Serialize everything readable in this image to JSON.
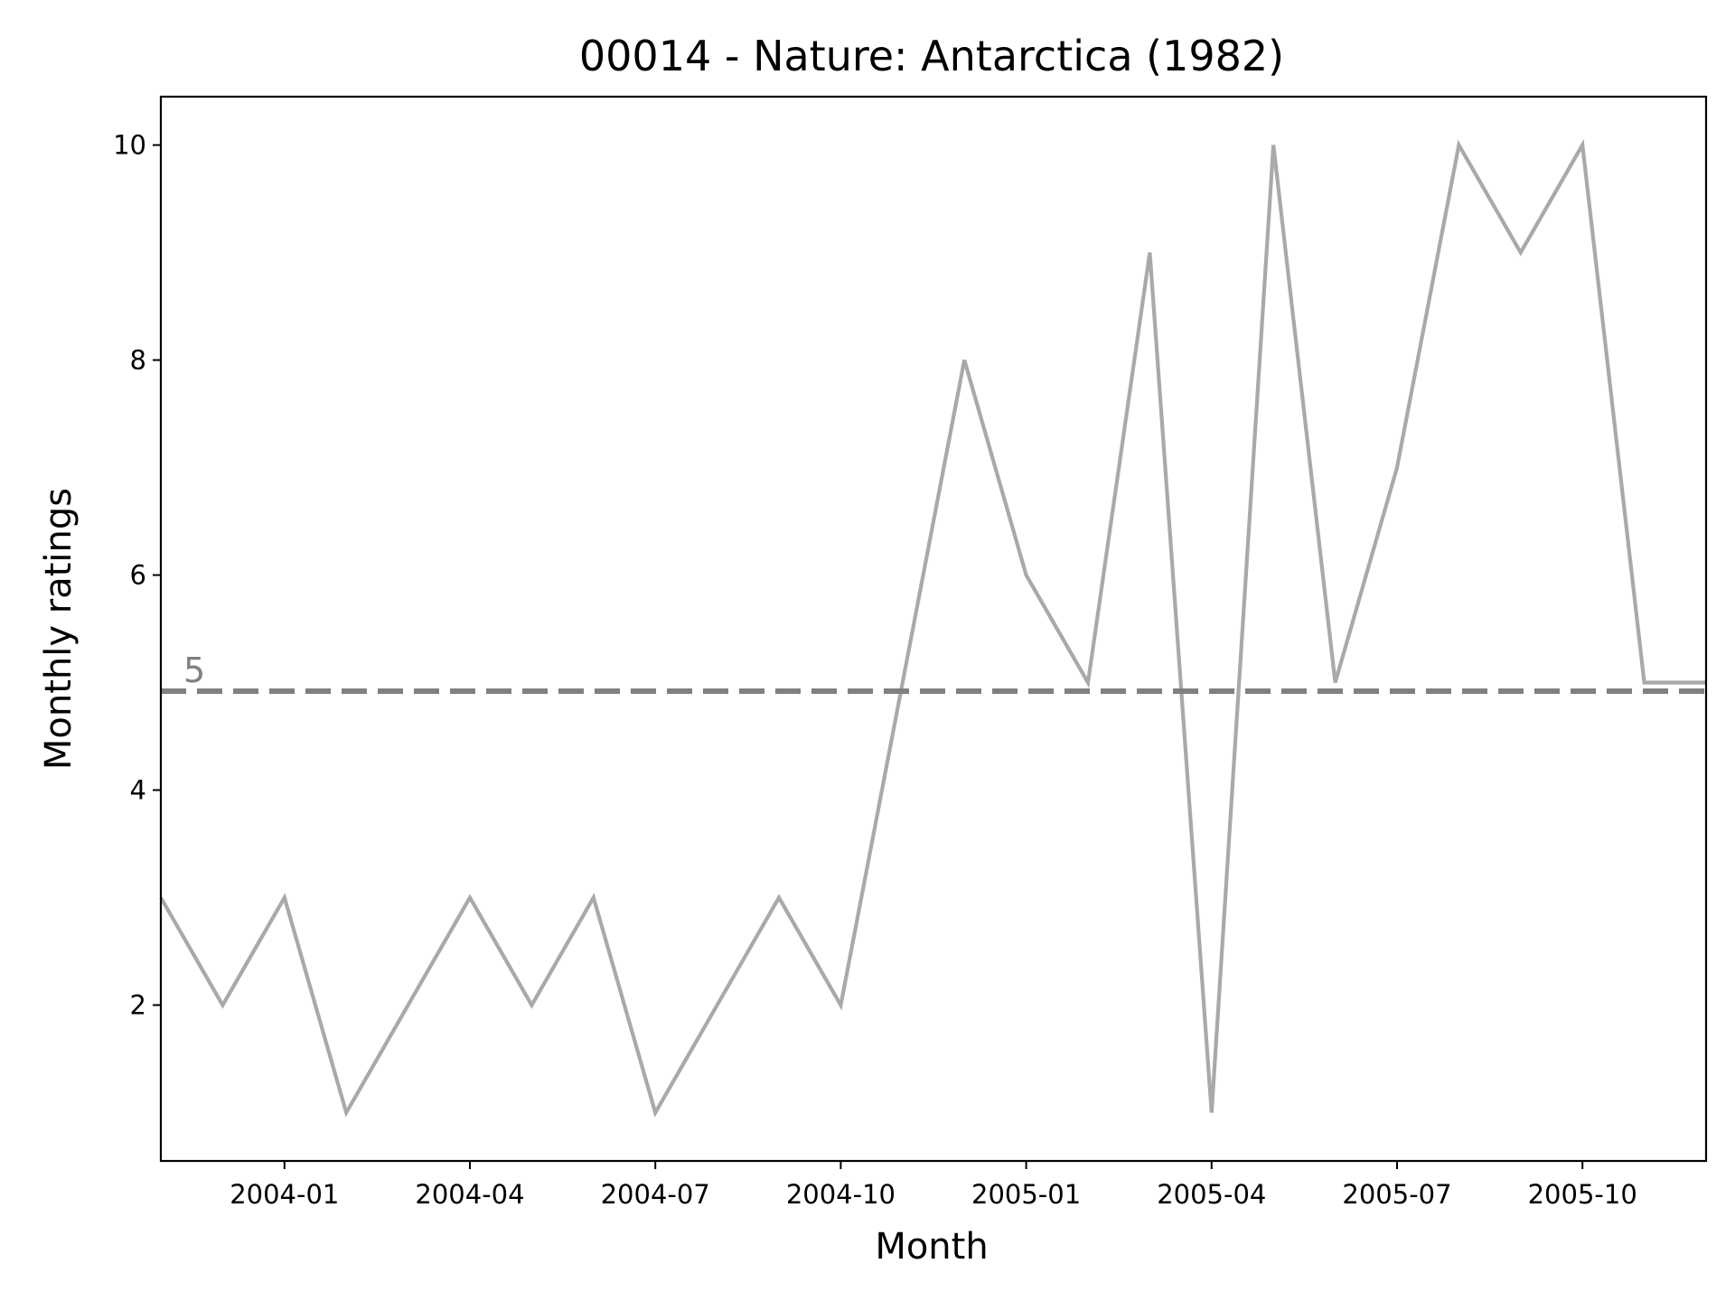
{
  "chart_data": {
    "type": "line",
    "title": "00014 - Nature: Antarctica (1982)",
    "xlabel": "Month",
    "ylabel": "Monthly ratings",
    "x": [
      "2003-11",
      "2003-12",
      "2004-01",
      "2004-02",
      "2004-03",
      "2004-04",
      "2004-05",
      "2004-06",
      "2004-07",
      "2004-08",
      "2004-09",
      "2004-10",
      "2004-11",
      "2004-12",
      "2005-01",
      "2005-02",
      "2005-03",
      "2005-04",
      "2005-05",
      "2005-06",
      "2005-07",
      "2005-08",
      "2005-09",
      "2005-10",
      "2005-11",
      "2005-12"
    ],
    "series": [
      {
        "values": [
          3,
          2,
          3,
          1,
          2,
          3,
          2,
          3,
          1,
          2,
          3,
          2,
          5,
          8,
          6,
          5,
          9,
          1,
          10,
          5,
          7,
          10,
          9,
          10,
          5,
          5
        ]
      }
    ],
    "xlim": [
      "2003-11",
      "2005-12"
    ],
    "ylim": [
      0.55,
      10.45
    ],
    "x_ticks": [
      "2004-01",
      "2004-04",
      "2004-07",
      "2004-10",
      "2005-01",
      "2005-04",
      "2005-07",
      "2005-10"
    ],
    "y_ticks": [
      2,
      4,
      6,
      8,
      10
    ],
    "reference_line": {
      "value": 4.92,
      "label": "5",
      "style": "dashed"
    },
    "grid": false,
    "colors": {
      "series": "#a9a9a9",
      "reference": "#808080",
      "axes": "#000000"
    }
  }
}
